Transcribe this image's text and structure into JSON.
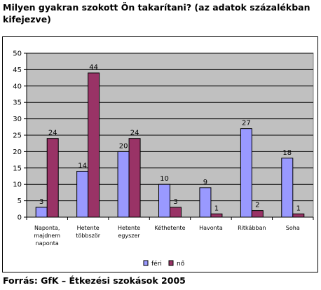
{
  "title": "Milyen gyakran szokott Ön takarítani? (az adatok százalékban kifejezve)",
  "source": "Forrás: GfK – Étkezési szokások 2005",
  "colors": {
    "ferfi": "#9999FF",
    "no": "#993366",
    "plot_bg": "#C0C0C0"
  },
  "chart_data": {
    "type": "bar",
    "title": "Milyen gyakran szokott Ön takarítani? (az adatok százalékban kifejezve)",
    "categories": [
      [
        "Naponta,",
        "majdnem",
        "naponta"
      ],
      [
        "Hetente",
        "többször"
      ],
      [
        "Hetente",
        "egyszer"
      ],
      [
        "Kéthetente"
      ],
      [
        "Havonta"
      ],
      [
        "Ritkábban"
      ],
      [
        "Soha"
      ]
    ],
    "series": [
      {
        "name": "féri",
        "values": [
          3,
          14,
          20,
          10,
          9,
          27,
          18
        ]
      },
      {
        "name": "nő",
        "values": [
          24,
          44,
          24,
          3,
          1,
          2,
          1
        ]
      }
    ],
    "ylim": [
      0,
      50
    ],
    "yticks": [
      0,
      5,
      10,
      15,
      20,
      25,
      30,
      35,
      40,
      45,
      50
    ],
    "grid": true,
    "legend_position": "bottom"
  }
}
